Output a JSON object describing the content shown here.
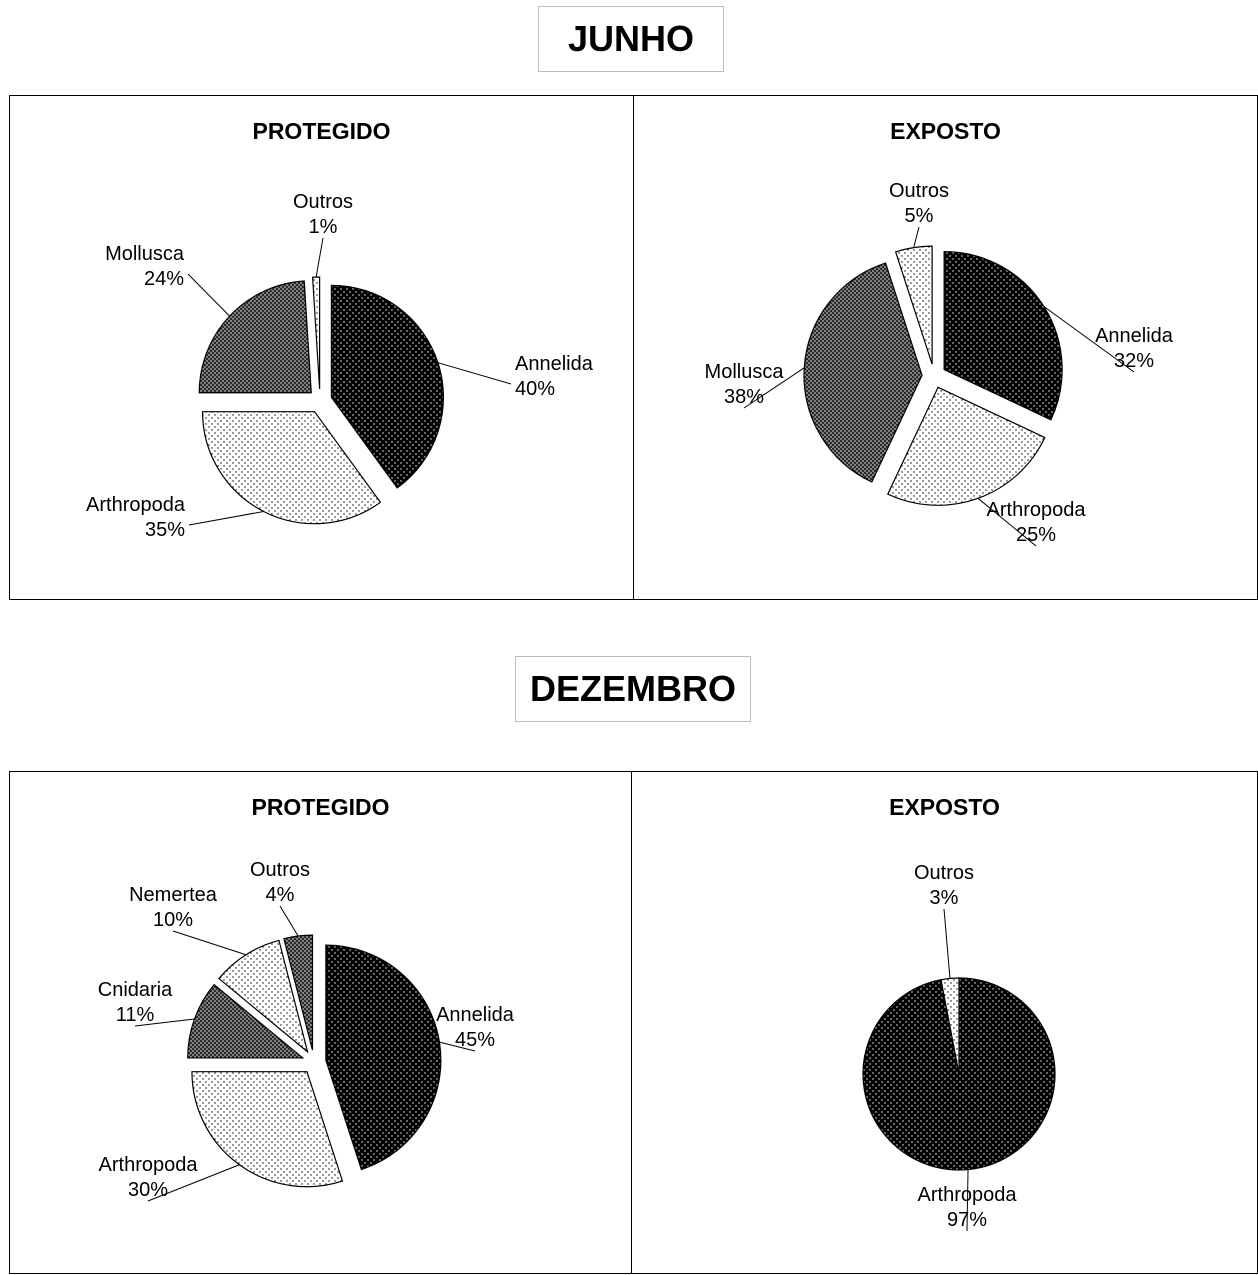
{
  "sections": [
    {
      "title": "JUNHO"
    },
    {
      "title": "DEZEMBRO"
    }
  ],
  "chart_data": [
    {
      "type": "pie",
      "month": "JUNHO",
      "title": "PROTEGIDO",
      "slices": [
        {
          "name": "Annelida",
          "value": 40,
          "label": "40%",
          "pattern": "dark-dots"
        },
        {
          "name": "Arthropoda",
          "value": 35,
          "label": "35%",
          "pattern": "light-dots"
        },
        {
          "name": "Mollusca",
          "value": 24,
          "label": "24%",
          "pattern": "dark-dense"
        },
        {
          "name": "Outros",
          "value": 1,
          "label": "1%",
          "pattern": "light-dots"
        }
      ]
    },
    {
      "type": "pie",
      "month": "JUNHO",
      "title": "EXPOSTO",
      "slices": [
        {
          "name": "Annelida",
          "value": 32,
          "label": "32%",
          "pattern": "dark-dots"
        },
        {
          "name": "Arthropoda",
          "value": 25,
          "label": "25%",
          "pattern": "light-dots"
        },
        {
          "name": "Mollusca",
          "value": 38,
          "label": "38%",
          "pattern": "dark-dense"
        },
        {
          "name": "Outros",
          "value": 5,
          "label": "5%",
          "pattern": "light-dots"
        }
      ]
    },
    {
      "type": "pie",
      "month": "DEZEMBRO",
      "title": "PROTEGIDO",
      "slices": [
        {
          "name": "Annelida",
          "value": 45,
          "label": "45%",
          "pattern": "dark-dots"
        },
        {
          "name": "Arthropoda",
          "value": 30,
          "label": "30%",
          "pattern": "light-dots"
        },
        {
          "name": "Cnidaria",
          "value": 11,
          "label": "11%",
          "pattern": "dark-dense"
        },
        {
          "name": "Nemertea",
          "value": 10,
          "label": "10%",
          "pattern": "light-dots"
        },
        {
          "name": "Outros",
          "value": 4,
          "label": "4%",
          "pattern": "dark-dense"
        }
      ]
    },
    {
      "type": "pie",
      "month": "DEZEMBRO",
      "title": "EXPOSTO",
      "slices": [
        {
          "name": "Arthropoda",
          "value": 97,
          "label": "97%",
          "pattern": "dark-dots"
        },
        {
          "name": "Outros",
          "value": 3,
          "label": "3%",
          "pattern": "light-dots"
        }
      ]
    }
  ],
  "colors": {
    "dark_fill": "#000000",
    "dense_fill": "#2b2b2b",
    "light_fill": "#ffffff",
    "dot_on_dark": "#ffffff",
    "dot_on_light": "#000000",
    "panel_border": "#000000",
    "title_border": "#bdbdbd"
  }
}
